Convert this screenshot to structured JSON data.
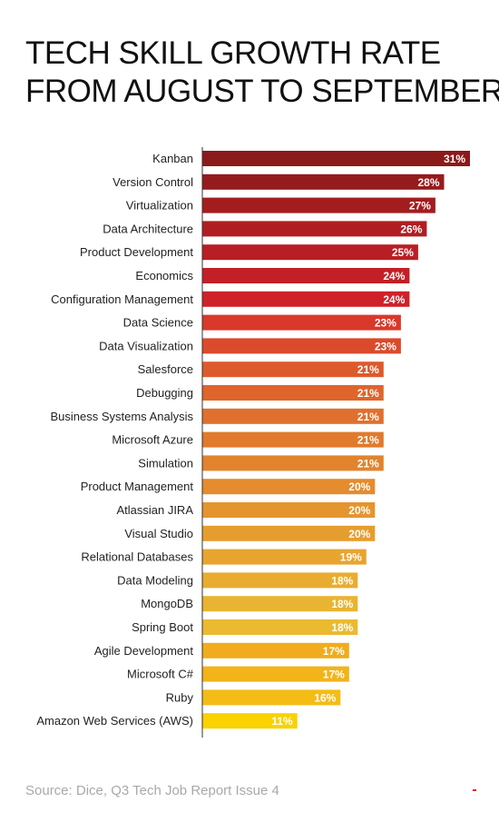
{
  "title_lines": [
    "TECH SKILL GROWTH RATE",
    "FROM AUGUST TO SEPTEMBER"
  ],
  "source": "Source: Dice, Q3 Tech Job Report Issue 4",
  "chart_data": {
    "type": "bar",
    "orientation": "horizontal",
    "title": "TECH SKILL GROWTH RATE FROM AUGUST TO SEPTEMBER",
    "xlabel": "",
    "ylabel": "",
    "xlim": [
      0,
      31
    ],
    "grid": false,
    "categories": [
      "Kanban",
      "Version Control",
      "Virtualization",
      "Data Architecture",
      "Product Development",
      "Economics",
      "Configuration Management",
      "Data Science",
      "Data Visualization",
      "Salesforce",
      "Debugging",
      "Business Systems Analysis",
      "Microsoft Azure",
      "Simulation",
      "Product Management",
      "Atlassian JIRA",
      "Visual Studio",
      "Relational Databases",
      "Data Modeling",
      "MongoDB",
      "Spring Boot",
      "Agile Development",
      "Microsoft C#",
      "Ruby",
      "Amazon Web Services (AWS)"
    ],
    "values": [
      31,
      28,
      27,
      26,
      25,
      24,
      24,
      23,
      23,
      21,
      21,
      21,
      21,
      21,
      20,
      20,
      20,
      19,
      18,
      18,
      18,
      17,
      17,
      16,
      11
    ],
    "labels": [
      "31%",
      "28%",
      "27%",
      "26%",
      "25%",
      "24%",
      "24%",
      "23%",
      "23%",
      "21%",
      "21%",
      "21%",
      "21%",
      "21%",
      "20%",
      "20%",
      "20%",
      "19%",
      "18%",
      "18%",
      "18%",
      "17%",
      "17%",
      "16%",
      "11%"
    ],
    "colors": [
      "#8b1a1a",
      "#961b1c",
      "#a31d1f",
      "#b01e22",
      "#b81f24",
      "#c22026",
      "#cf2129",
      "#d9382a",
      "#db4a2b",
      "#dd5a2c",
      "#df652c",
      "#e0702d",
      "#e17a2d",
      "#e2832e",
      "#e48c2e",
      "#e5952f",
      "#e69d2f",
      "#e7a530",
      "#e8ad30",
      "#e9b431",
      "#eabb31",
      "#f0ac1c",
      "#f2b419",
      "#f4bc15",
      "#f9d200"
    ]
  }
}
